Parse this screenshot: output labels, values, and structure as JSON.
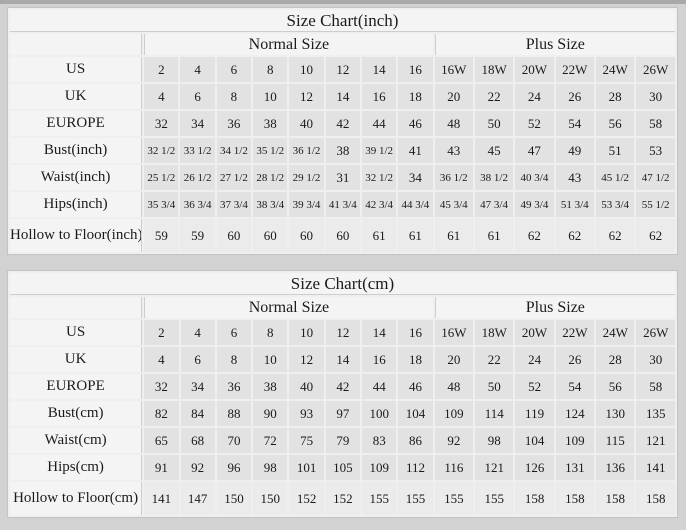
{
  "colors": {
    "page_bg": "#d2d2d2",
    "top_strip": "#a9a9a9",
    "table_border": "#c3c3c3",
    "grid_line": "#efefef",
    "header_bg": "#f4f4f4",
    "label_bg": "#f4f4f4",
    "cell_bg": "#e2e2e2",
    "last_row_cell_bg": "#ebebeb",
    "divider": "#cdcdcd",
    "text": "#1b1b1b"
  },
  "chart_data": [
    {
      "type": "table",
      "title": "Size Chart(inch)",
      "column_groups": [
        {
          "label": "Normal Size",
          "span": 8
        },
        {
          "label": "Plus Size",
          "span": 6
        }
      ],
      "rows": [
        {
          "label": "US",
          "values": [
            "2",
            "4",
            "6",
            "8",
            "10",
            "12",
            "14",
            "16",
            "16W",
            "18W",
            "20W",
            "22W",
            "24W",
            "26W"
          ]
        },
        {
          "label": "UK",
          "values": [
            "4",
            "6",
            "8",
            "10",
            "12",
            "14",
            "16",
            "18",
            "20",
            "22",
            "24",
            "26",
            "28",
            "30"
          ]
        },
        {
          "label": "EUROPE",
          "values": [
            "32",
            "34",
            "36",
            "38",
            "40",
            "42",
            "44",
            "46",
            "48",
            "50",
            "52",
            "54",
            "56",
            "58"
          ]
        },
        {
          "label": "Bust(inch)",
          "values": [
            "32 1/2",
            "33 1/2",
            "34 1/2",
            "35 1/2",
            "36 1/2",
            "38",
            "39 1/2",
            "41",
            "43",
            "45",
            "47",
            "49",
            "51",
            "53"
          ]
        },
        {
          "label": "Waist(inch)",
          "values": [
            "25 1/2",
            "26 1/2",
            "27 1/2",
            "28 1/2",
            "29 1/2",
            "31",
            "32 1/2",
            "34",
            "36 1/2",
            "38 1/2",
            "40 3/4",
            "43",
            "45 1/2",
            "47 1/2"
          ]
        },
        {
          "label": "Hips(inch)",
          "values": [
            "35 3/4",
            "36 3/4",
            "37 3/4",
            "38 3/4",
            "39 3/4",
            "41 3/4",
            "42 3/4",
            "44 3/4",
            "45 3/4",
            "47 3/4",
            "49 3/4",
            "51 3/4",
            "53 3/4",
            "55 1/2"
          ]
        },
        {
          "label": "Hollow to Floor(inch)",
          "values": [
            "59",
            "59",
            "60",
            "60",
            "60",
            "60",
            "61",
            "61",
            "61",
            "61",
            "62",
            "62",
            "62",
            "62"
          ]
        }
      ]
    },
    {
      "type": "table",
      "title": "Size Chart(cm)",
      "column_groups": [
        {
          "label": "Normal Size",
          "span": 8
        },
        {
          "label": "Plus Size",
          "span": 6
        }
      ],
      "rows": [
        {
          "label": "US",
          "values": [
            "2",
            "4",
            "6",
            "8",
            "10",
            "12",
            "14",
            "16",
            "16W",
            "18W",
            "20W",
            "22W",
            "24W",
            "26W"
          ]
        },
        {
          "label": "UK",
          "values": [
            "4",
            "6",
            "8",
            "10",
            "12",
            "14",
            "16",
            "18",
            "20",
            "22",
            "24",
            "26",
            "28",
            "30"
          ]
        },
        {
          "label": "EUROPE",
          "values": [
            "32",
            "34",
            "36",
            "38",
            "40",
            "42",
            "44",
            "46",
            "48",
            "50",
            "52",
            "54",
            "56",
            "58"
          ]
        },
        {
          "label": "Bust(cm)",
          "values": [
            "82",
            "84",
            "88",
            "90",
            "93",
            "97",
            "100",
            "104",
            "109",
            "114",
            "119",
            "124",
            "130",
            "135"
          ]
        },
        {
          "label": "Waist(cm)",
          "values": [
            "65",
            "68",
            "70",
            "72",
            "75",
            "79",
            "83",
            "86",
            "92",
            "98",
            "104",
            "109",
            "115",
            "121"
          ]
        },
        {
          "label": "Hips(cm)",
          "values": [
            "91",
            "92",
            "96",
            "98",
            "101",
            "105",
            "109",
            "112",
            "116",
            "121",
            "126",
            "131",
            "136",
            "141"
          ]
        },
        {
          "label": "Hollow to Floor(cm)",
          "values": [
            "141",
            "147",
            "150",
            "150",
            "152",
            "152",
            "155",
            "155",
            "155",
            "155",
            "158",
            "158",
            "158",
            "158"
          ]
        }
      ]
    }
  ]
}
